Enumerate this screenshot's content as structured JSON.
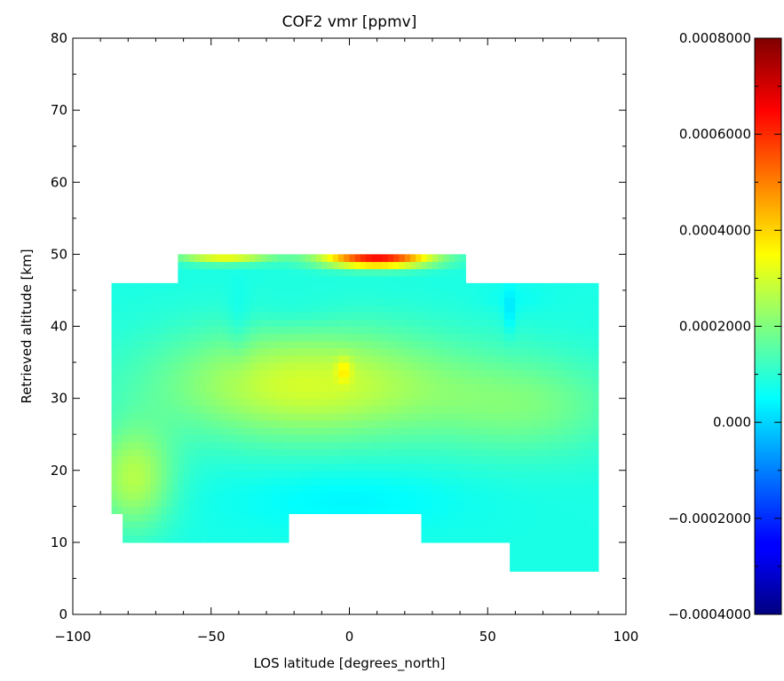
{
  "chart_data": {
    "type": "heatmap",
    "title": "COF2 vmr [ppmv]",
    "xlabel": "LOS latitude [degrees_north]",
    "ylabel": "Retrieved altitude [km]",
    "xlim": [
      -100,
      100
    ],
    "ylim": [
      0,
      80
    ],
    "x_ticks": [
      "−100",
      "−50",
      "0",
      "50",
      "100"
    ],
    "y_ticks": [
      "0",
      "10",
      "20",
      "30",
      "40",
      "50",
      "60",
      "70",
      "80"
    ],
    "colorbar": {
      "min": -0.0004,
      "max": 0.0008,
      "tick_values": [
        -0.0004,
        -0.0002,
        0.0,
        0.0002,
        0.0004,
        0.0006,
        0.0008
      ],
      "tick_labels": [
        "−0.0004000",
        "−0.0002000",
        "0.000",
        "0.0002000",
        "0.0004000",
        "0.0006000",
        "0.0008000"
      ],
      "colormap": "jet"
    },
    "regions": [
      {
        "x": [
          -86,
          -82
        ],
        "y": [
          14,
          46
        ]
      },
      {
        "x": [
          -82,
          -62
        ],
        "y": [
          10,
          46
        ]
      },
      {
        "x": [
          -62,
          -22
        ],
        "y": [
          10,
          50
        ]
      },
      {
        "x": [
          -22,
          26
        ],
        "y": [
          14,
          50
        ]
      },
      {
        "x": [
          26,
          42
        ],
        "y": [
          10,
          50
        ]
      },
      {
        "x": [
          42,
          58
        ],
        "y": [
          10,
          46
        ]
      },
      {
        "x": [
          58,
          90
        ],
        "y": [
          6,
          46
        ]
      }
    ],
    "field": {
      "background": 8e-05,
      "features": [
        {
          "x": -15,
          "y": 32,
          "sx": 38,
          "sy": 5.5,
          "value": 0.00022
        },
        {
          "x": -78,
          "y": 19,
          "sx": 10,
          "sy": 5,
          "value": 0.00018
        },
        {
          "x": 65,
          "y": 29,
          "sx": 25,
          "sy": 5,
          "value": 0.0001
        },
        {
          "x": 10,
          "y": 49.5,
          "sx": 14,
          "sy": 0.9,
          "value": 0.00055
        },
        {
          "x": -45,
          "y": 49.7,
          "sx": 12,
          "sy": 0.7,
          "value": 0.00025
        },
        {
          "x": -2,
          "y": 34,
          "sx": 2,
          "sy": 1.2,
          "value": 0.0001
        },
        {
          "x": 0,
          "y": 16,
          "sx": 30,
          "sy": 3,
          "value": -4e-05
        },
        {
          "x": 58,
          "y": 42,
          "sx": 1.5,
          "sy": 2.2,
          "value": -6e-05
        },
        {
          "x": 60,
          "y": 44,
          "sx": 9,
          "sy": 1.5,
          "value": -2e-05
        },
        {
          "x": -40,
          "y": 40,
          "sx": 3,
          "sy": 4,
          "value": -3e-05
        },
        {
          "x": -20,
          "y": 42,
          "sx": 12,
          "sy": 2,
          "value": -2e-05
        }
      ]
    }
  }
}
